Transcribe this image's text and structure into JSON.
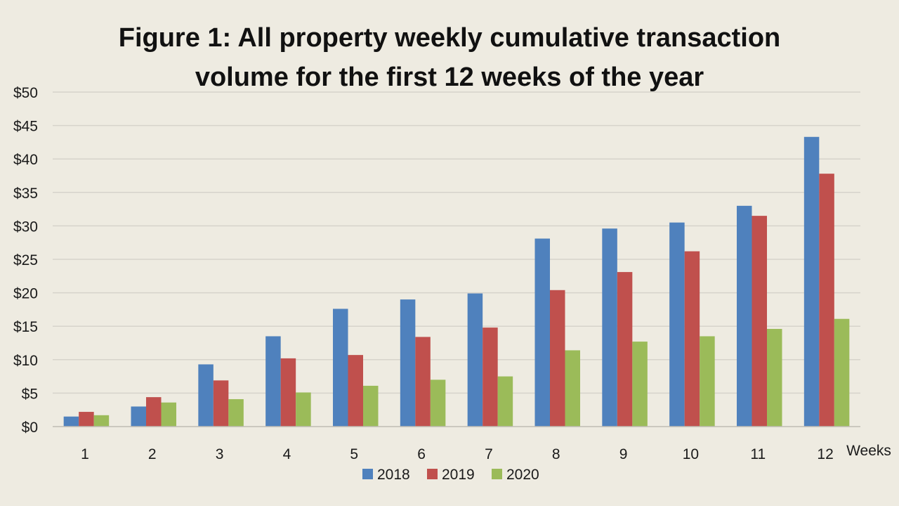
{
  "chart_data": {
    "type": "bar",
    "title": "Figure 1: All property weekly cumulative transaction volume for the first 12 weeks of the year",
    "title_lines": [
      "Figure 1: All property weekly cumulative transaction",
      "volume for the first 12 weeks of the year"
    ],
    "xlabel": "Weeks",
    "ylabel": "",
    "ylim": [
      0,
      50
    ],
    "yticks": [
      0,
      5,
      10,
      15,
      20,
      25,
      30,
      35,
      40,
      45,
      50
    ],
    "ytick_labels": [
      "$0",
      "$5",
      "$10",
      "$15",
      "$20",
      "$25",
      "$30",
      "$35",
      "$40",
      "$45",
      "$50"
    ],
    "categories": [
      "1",
      "2",
      "3",
      "4",
      "5",
      "6",
      "7",
      "8",
      "9",
      "10",
      "11",
      "12"
    ],
    "series": [
      {
        "name": "2018",
        "color": "#4F81BD",
        "values": [
          1.5,
          3.0,
          9.3,
          13.5,
          17.6,
          19.0,
          19.9,
          28.1,
          29.6,
          30.5,
          33.0,
          43.3
        ]
      },
      {
        "name": "2019",
        "color": "#C0504D",
        "values": [
          2.2,
          4.4,
          6.9,
          10.2,
          10.7,
          13.4,
          14.8,
          20.4,
          23.1,
          26.2,
          31.5,
          37.8
        ]
      },
      {
        "name": "2020",
        "color": "#9BBB59",
        "values": [
          1.7,
          3.6,
          4.1,
          5.1,
          6.1,
          7.0,
          7.5,
          11.4,
          12.7,
          13.5,
          14.6,
          16.1
        ]
      }
    ],
    "grid": true,
    "legend_position": "bottom"
  }
}
